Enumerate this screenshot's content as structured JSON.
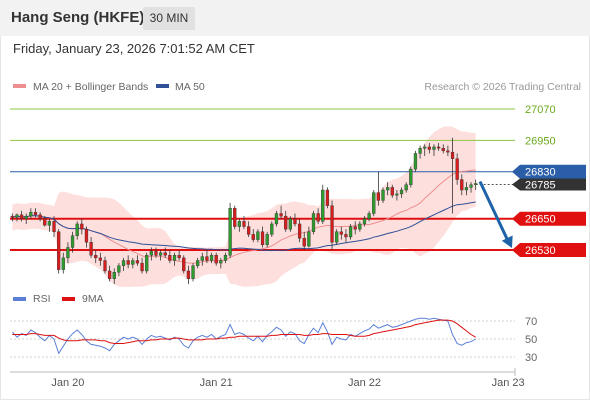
{
  "header": {
    "title": "Hang Seng (HKFE)",
    "timeframe": "30 MIN"
  },
  "datetime": "Friday, January 23, 2026 7:01:52 AM CET",
  "price_legend": [
    {
      "label": "MA 20 + Bollinger Bands",
      "color": "#ee8f8f"
    },
    {
      "label": "MA 50",
      "color": "#2f4f96"
    }
  ],
  "rsi_legend": [
    {
      "label": "RSI",
      "color": "#5b7fd6"
    },
    {
      "label": "9MA",
      "color": "#dd1111"
    }
  ],
  "copyright": "Research © 2026 Trading Central",
  "colors": {
    "up": "#2e9b2e",
    "down": "#d81d1d",
    "bb_fill": "#fde0de",
    "support": "#e01010",
    "resistance": "#8ec63f",
    "pivot": "#2b5ea8",
    "price_tag": "#333333",
    "arrow": "#1e62a8"
  },
  "chart_data": [
    {
      "type": "candlestick",
      "x_ticks": [
        "Jan 20",
        "Jan 21",
        "Jan 22",
        "Jan 23"
      ],
      "ylim": [
        26400,
        27120
      ],
      "levels": [
        {
          "value": 27070,
          "label": "27070",
          "role": "resistance"
        },
        {
          "value": 26950,
          "label": "26950",
          "role": "resistance"
        },
        {
          "value": 26830,
          "label": "26830",
          "role": "pivot"
        },
        {
          "value": 26650,
          "label": "26650",
          "role": "support"
        },
        {
          "value": 26530,
          "label": "26530",
          "role": "support"
        }
      ],
      "last_price": {
        "value": 26785,
        "label": "26785"
      },
      "candles": [
        [
          26660,
          26670,
          26640,
          26655
        ],
        [
          26655,
          26670,
          26640,
          26665
        ],
        [
          26665,
          26680,
          26640,
          26650
        ],
        [
          26650,
          26670,
          26630,
          26660
        ],
        [
          26660,
          26690,
          26650,
          26675
        ],
        [
          26675,
          26690,
          26655,
          26665
        ],
        [
          26665,
          26675,
          26640,
          26650
        ],
        [
          26650,
          26660,
          26620,
          26625
        ],
        [
          26625,
          26650,
          26600,
          26640
        ],
        [
          26640,
          26660,
          26580,
          26600
        ],
        [
          26600,
          26610,
          26440,
          26455
        ],
        [
          26455,
          26520,
          26440,
          26500
        ],
        [
          26500,
          26560,
          26480,
          26540
        ],
        [
          26540,
          26600,
          26520,
          26585
        ],
        [
          26585,
          26640,
          26570,
          26630
        ],
        [
          26630,
          26650,
          26590,
          26610
        ],
        [
          26610,
          26620,
          26540,
          26560
        ],
        [
          26560,
          26580,
          26500,
          26510
        ],
        [
          26510,
          26530,
          26480,
          26500
        ],
        [
          26500,
          26520,
          26470,
          26490
        ],
        [
          26490,
          26505,
          26440,
          26450
        ],
        [
          26450,
          26470,
          26410,
          26420
        ],
        [
          26420,
          26460,
          26400,
          26445
        ],
        [
          26445,
          26480,
          26430,
          26470
        ],
        [
          26470,
          26500,
          26450,
          26490
        ],
        [
          26490,
          26510,
          26460,
          26475
        ],
        [
          26475,
          26500,
          26460,
          26490
        ],
        [
          26490,
          26510,
          26470,
          26480
        ],
        [
          26480,
          26500,
          26440,
          26450
        ],
        [
          26450,
          26520,
          26440,
          26510
        ],
        [
          26510,
          26540,
          26490,
          26525
        ],
        [
          26525,
          26540,
          26500,
          26510
        ],
        [
          26510,
          26530,
          26490,
          26520
        ],
        [
          26520,
          26540,
          26500,
          26510
        ],
        [
          26510,
          26530,
          26480,
          26490
        ],
        [
          26490,
          26520,
          26470,
          26510
        ],
        [
          26510,
          26530,
          26490,
          26500
        ],
        [
          26500,
          26510,
          26440,
          26450
        ],
        [
          26450,
          26470,
          26400,
          26420
        ],
        [
          26420,
          26480,
          26410,
          26470
        ],
        [
          26470,
          26500,
          26460,
          26490
        ],
        [
          26490,
          26520,
          26470,
          26505
        ],
        [
          26505,
          26530,
          26480,
          26490
        ],
        [
          26490,
          26520,
          26480,
          26510
        ],
        [
          26510,
          26520,
          26470,
          26480
        ],
        [
          26480,
          26500,
          26460,
          26490
        ],
        [
          26490,
          26520,
          26480,
          26510
        ],
        [
          26510,
          26710,
          26500,
          26690
        ],
        [
          26690,
          26700,
          26610,
          26620
        ],
        [
          26620,
          26650,
          26600,
          26640
        ],
        [
          26640,
          26660,
          26610,
          26620
        ],
        [
          26620,
          26640,
          26580,
          26590
        ],
        [
          26590,
          26610,
          26560,
          26570
        ],
        [
          26570,
          26610,
          26560,
          26600
        ],
        [
          26600,
          26620,
          26540,
          26550
        ],
        [
          26550,
          26600,
          26540,
          26590
        ],
        [
          26590,
          26640,
          26580,
          26630
        ],
        [
          26630,
          26680,
          26620,
          26670
        ],
        [
          26670,
          26700,
          26650,
          26660
        ],
        [
          26660,
          26680,
          26600,
          26610
        ],
        [
          26610,
          26660,
          26600,
          26650
        ],
        [
          26650,
          26670,
          26620,
          26630
        ],
        [
          26630,
          26650,
          26560,
          26575
        ],
        [
          26575,
          26600,
          26530,
          26545
        ],
        [
          26545,
          26620,
          26540,
          26600
        ],
        [
          26600,
          26680,
          26590,
          26670
        ],
        [
          26670,
          26690,
          26630,
          26640
        ],
        [
          26640,
          26780,
          26630,
          26760
        ],
        [
          26760,
          26770,
          26690,
          26700
        ],
        [
          26700,
          26720,
          26530,
          26560
        ],
        [
          26560,
          26610,
          26550,
          26600
        ],
        [
          26600,
          26620,
          26570,
          26590
        ],
        [
          26590,
          26610,
          26560,
          26580
        ],
        [
          26580,
          26630,
          26570,
          26620
        ],
        [
          26620,
          26640,
          26590,
          26610
        ],
        [
          26610,
          26640,
          26600,
          26630
        ],
        [
          26630,
          26660,
          26620,
          26650
        ],
        [
          26650,
          26680,
          26640,
          26670
        ],
        [
          26670,
          26760,
          26660,
          26750
        ],
        [
          26750,
          26830,
          26700,
          26720
        ],
        [
          26720,
          26770,
          26710,
          26760
        ],
        [
          26760,
          26790,
          26740,
          26770
        ],
        [
          26770,
          26780,
          26730,
          26740
        ],
        [
          26740,
          26760,
          26720,
          26745
        ],
        [
          26745,
          26770,
          26730,
          26760
        ],
        [
          26760,
          26790,
          26750,
          26780
        ],
        [
          26780,
          26850,
          26770,
          26840
        ],
        [
          26840,
          26910,
          26830,
          26900
        ],
        [
          26900,
          26930,
          26880,
          26920
        ],
        [
          26920,
          26935,
          26890,
          26925
        ],
        [
          26925,
          26940,
          26900,
          26915
        ],
        [
          26915,
          26935,
          26890,
          26925
        ],
        [
          26925,
          26940,
          26910,
          26920
        ],
        [
          26920,
          26935,
          26900,
          26910
        ],
        [
          26910,
          26930,
          26890,
          26905
        ],
        [
          26905,
          26960,
          26670,
          26880
        ],
        [
          26880,
          26900,
          26780,
          26800
        ],
        [
          26800,
          26820,
          26740,
          26760
        ],
        [
          26760,
          26790,
          26740,
          26770
        ],
        [
          26770,
          26790,
          26750,
          26780
        ],
        [
          26780,
          26800,
          26760,
          26785
        ]
      ]
    },
    {
      "type": "line",
      "title": "RSI",
      "y_ticks": [
        30,
        50,
        70
      ],
      "ylim": [
        20,
        80
      ],
      "series": [
        {
          "name": "RSI",
          "values": [
            58,
            52,
            56,
            54,
            60,
            57,
            52,
            48,
            54,
            50,
            34,
            42,
            50,
            56,
            60,
            55,
            48,
            44,
            43,
            42,
            40,
            37,
            44,
            48,
            52,
            50,
            52,
            50,
            44,
            50,
            54,
            52,
            53,
            51,
            49,
            52,
            50,
            43,
            40,
            48,
            52,
            54,
            52,
            55,
            50,
            53,
            55,
            66,
            55,
            57,
            55,
            51,
            48,
            53,
            47,
            54,
            58,
            63,
            60,
            53,
            58,
            56,
            48,
            45,
            55,
            62,
            57,
            68,
            58,
            44,
            52,
            50,
            49,
            55,
            53,
            56,
            59,
            61,
            66,
            62,
            64,
            66,
            63,
            64,
            66,
            68,
            70,
            72,
            73,
            73,
            72,
            73,
            72,
            71,
            70,
            55,
            45,
            43,
            46,
            47,
            50
          ]
        },
        {
          "name": "9MA",
          "values": [
            55,
            55,
            55,
            55,
            56,
            56,
            55,
            54,
            54,
            54,
            51,
            49,
            48,
            48,
            48,
            49,
            49,
            49,
            49,
            48,
            48,
            46,
            45,
            45,
            45,
            46,
            47,
            48,
            48,
            48,
            49,
            49,
            50,
            50,
            50,
            51,
            51,
            50,
            49,
            49,
            49,
            49,
            50,
            50,
            50,
            51,
            51,
            52,
            52,
            53,
            53,
            53,
            53,
            53,
            53,
            53,
            54,
            54,
            55,
            55,
            55,
            55,
            55,
            54,
            54,
            55,
            55,
            56,
            56,
            55,
            55,
            55,
            55,
            54,
            53,
            53,
            53,
            54,
            56,
            57,
            58,
            59,
            60,
            61,
            62,
            63,
            64,
            66,
            67,
            68,
            69,
            70,
            71,
            71,
            71,
            70,
            67,
            63,
            59,
            55,
            52
          ]
        }
      ]
    }
  ]
}
